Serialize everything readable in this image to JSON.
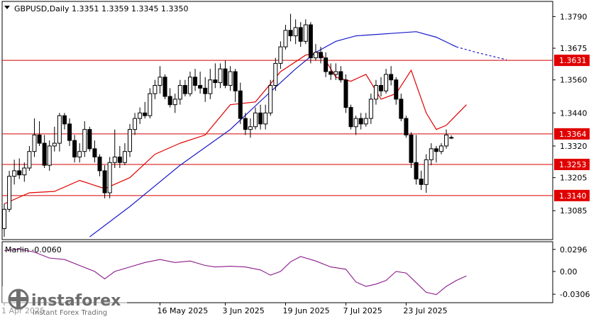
{
  "header": {
    "symbol_line": "GBPUSD,Daily  1.3351  1.3359  1.3345  1.3350",
    "dropdown_icon": "triangle-down-icon"
  },
  "indicator": {
    "label": "Marlin -0.0060",
    "ticks": [
      "0.0296",
      "0.00",
      "-0.0306"
    ]
  },
  "watermark": {
    "brand": "instaforex",
    "tagline": "Instant Forex Trading"
  },
  "colors": {
    "background": "#ffffff",
    "candle": "#000000",
    "level_line": "#d40000",
    "level_label_bg": "#e00000",
    "ma_fast": "#e00000",
    "ma_slow": "#1a1acc",
    "oscillator": "#8b1a8b"
  },
  "chart_data": [
    {
      "type": "candlestick",
      "symbol": "GBPUSD",
      "timeframe": "Daily",
      "ohlc_current": {
        "open": 1.3351,
        "high": 1.3359,
        "low": 1.3345,
        "close": 1.335
      },
      "y_ticks": [
        "1.3790",
        "1.3675",
        "1.3560",
        "1.3440",
        "1.3320",
        "1.3205",
        "1.3085"
      ],
      "ylim": [
        1.298,
        1.3845
      ],
      "x_ticks": [
        "1 Apr 2025",
        "16 May 2025",
        "3 Jun 2025",
        "19 Jun 2025",
        "7 Jul 2025",
        "23 Jul 2025"
      ],
      "x_tick_index": [
        0,
        31,
        44,
        56,
        68,
        80
      ],
      "levels": [
        {
          "label": "1.3631",
          "value": 1.3631
        },
        {
          "label": "1.3364",
          "value": 1.3364
        },
        {
          "label": "1.3253",
          "value": 1.3253
        },
        {
          "label": "1.3140",
          "value": 1.314
        }
      ],
      "candles": [
        [
          1.302,
          1.311,
          1.299,
          1.309
        ],
        [
          1.309,
          1.323,
          1.308,
          1.321
        ],
        [
          1.321,
          1.327,
          1.318,
          1.323
        ],
        [
          1.323,
          1.3275,
          1.32,
          1.3215
        ],
        [
          1.3215,
          1.326,
          1.319,
          1.324
        ],
        [
          1.324,
          1.332,
          1.323,
          1.33
        ],
        [
          1.33,
          1.342,
          1.328,
          1.336
        ],
        [
          1.336,
          1.341,
          1.332,
          1.333
        ],
        [
          1.333,
          1.336,
          1.324,
          1.325
        ],
        [
          1.325,
          1.334,
          1.323,
          1.332
        ],
        [
          1.332,
          1.339,
          1.33,
          1.333
        ],
        [
          1.333,
          1.344,
          1.33,
          1.343
        ],
        [
          1.343,
          1.344,
          1.338,
          1.34
        ],
        [
          1.34,
          1.342,
          1.332,
          1.334
        ],
        [
          1.334,
          1.336,
          1.326,
          1.328
        ],
        [
          1.328,
          1.333,
          1.326,
          1.33
        ],
        [
          1.33,
          1.341,
          1.328,
          1.338
        ],
        [
          1.338,
          1.339,
          1.33,
          1.331
        ],
        [
          1.331,
          1.334,
          1.326,
          1.328
        ],
        [
          1.328,
          1.329,
          1.321,
          1.323
        ],
        [
          1.323,
          1.325,
          1.313,
          1.315
        ],
        [
          1.315,
          1.328,
          1.313,
          1.326
        ],
        [
          1.326,
          1.338,
          1.324,
          1.328
        ],
        [
          1.328,
          1.332,
          1.324,
          1.326
        ],
        [
          1.326,
          1.333,
          1.325,
          1.33
        ],
        [
          1.33,
          1.34,
          1.328,
          1.338
        ],
        [
          1.338,
          1.344,
          1.336,
          1.342
        ],
        [
          1.342,
          1.346,
          1.34,
          1.344
        ],
        [
          1.344,
          1.348,
          1.342,
          1.343
        ],
        [
          1.343,
          1.353,
          1.342,
          1.351
        ],
        [
          1.351,
          1.356,
          1.349,
          1.354
        ],
        [
          1.354,
          1.361,
          1.351,
          1.357
        ],
        [
          1.357,
          1.358,
          1.349,
          1.35
        ],
        [
          1.35,
          1.353,
          1.346,
          1.347
        ],
        [
          1.347,
          1.351,
          1.344,
          1.349
        ],
        [
          1.349,
          1.356,
          1.347,
          1.354
        ],
        [
          1.354,
          1.356,
          1.35,
          1.351
        ],
        [
          1.351,
          1.359,
          1.35,
          1.357
        ],
        [
          1.357,
          1.36,
          1.352,
          1.354
        ],
        [
          1.354,
          1.359,
          1.351,
          1.353
        ],
        [
          1.353,
          1.357,
          1.348,
          1.351
        ],
        [
          1.351,
          1.36,
          1.349,
          1.356
        ],
        [
          1.356,
          1.362,
          1.353,
          1.355
        ],
        [
          1.355,
          1.362,
          1.353,
          1.36
        ],
        [
          1.36,
          1.363,
          1.353,
          1.354
        ],
        [
          1.354,
          1.361,
          1.352,
          1.359
        ],
        [
          1.359,
          1.36,
          1.348,
          1.352
        ],
        [
          1.352,
          1.355,
          1.34,
          1.342
        ],
        [
          1.342,
          1.344,
          1.336,
          1.338
        ],
        [
          1.338,
          1.342,
          1.335,
          1.339
        ],
        [
          1.339,
          1.346,
          1.338,
          1.344
        ],
        [
          1.344,
          1.347,
          1.338,
          1.34
        ],
        [
          1.34,
          1.347,
          1.338,
          1.344
        ],
        [
          1.344,
          1.356,
          1.343,
          1.354
        ],
        [
          1.354,
          1.364,
          1.352,
          1.362
        ],
        [
          1.362,
          1.37,
          1.36,
          1.368
        ],
        [
          1.368,
          1.376,
          1.367,
          1.374
        ],
        [
          1.374,
          1.38,
          1.37,
          1.372
        ],
        [
          1.372,
          1.378,
          1.369,
          1.375
        ],
        [
          1.375,
          1.377,
          1.368,
          1.37
        ],
        [
          1.37,
          1.378,
          1.369,
          1.376
        ],
        [
          1.376,
          1.377,
          1.362,
          1.364
        ],
        [
          1.364,
          1.369,
          1.363,
          1.366
        ],
        [
          1.366,
          1.368,
          1.362,
          1.364
        ],
        [
          1.364,
          1.366,
          1.357,
          1.359
        ],
        [
          1.359,
          1.362,
          1.356,
          1.358
        ],
        [
          1.358,
          1.362,
          1.356,
          1.359
        ],
        [
          1.359,
          1.361,
          1.355,
          1.356
        ],
        [
          1.356,
          1.358,
          1.344,
          1.346
        ],
        [
          1.346,
          1.347,
          1.338,
          1.339
        ],
        [
          1.339,
          1.343,
          1.336,
          1.342
        ],
        [
          1.342,
          1.344,
          1.338,
          1.34
        ],
        [
          1.34,
          1.344,
          1.339,
          1.342
        ],
        [
          1.342,
          1.351,
          1.34,
          1.349
        ],
        [
          1.349,
          1.356,
          1.347,
          1.354
        ],
        [
          1.354,
          1.357,
          1.35,
          1.352
        ],
        [
          1.352,
          1.36,
          1.351,
          1.358
        ],
        [
          1.358,
          1.361,
          1.354,
          1.356
        ],
        [
          1.356,
          1.357,
          1.347,
          1.349
        ],
        [
          1.349,
          1.351,
          1.341,
          1.342
        ],
        [
          1.342,
          1.343,
          1.335,
          1.336
        ],
        [
          1.336,
          1.337,
          1.324,
          1.326
        ],
        [
          1.326,
          1.336,
          1.318,
          1.32
        ],
        [
          1.32,
          1.323,
          1.316,
          1.318
        ],
        [
          1.318,
          1.329,
          1.315,
          1.327
        ],
        [
          1.327,
          1.333,
          1.325,
          1.331
        ],
        [
          1.331,
          1.332,
          1.326,
          1.33
        ],
        [
          1.33,
          1.333,
          1.329,
          1.332
        ],
        [
          1.332,
          1.338,
          1.331,
          1.336
        ],
        [
          1.3351,
          1.3359,
          1.3345,
          1.335
        ]
      ],
      "ma_fast": [
        [
          0,
          1.311
        ],
        [
          5,
          1.315
        ],
        [
          10,
          1.3155
        ],
        [
          15,
          1.3195
        ],
        [
          20,
          1.3165
        ],
        [
          25,
          1.3205
        ],
        [
          30,
          1.329
        ],
        [
          35,
          1.333
        ],
        [
          40,
          1.336
        ],
        [
          45,
          1.347
        ],
        [
          50,
          1.348
        ],
        [
          55,
          1.359
        ],
        [
          60,
          1.365
        ],
        [
          63,
          1.366
        ],
        [
          66,
          1.357
        ],
        [
          69,
          1.3555
        ],
        [
          72,
          1.358
        ],
        [
          75,
          1.349
        ],
        [
          78,
          1.351
        ],
        [
          81,
          1.3595
        ],
        [
          84,
          1.344
        ],
        [
          86,
          1.338
        ],
        [
          88,
          1.3395
        ],
        [
          92,
          1.347
        ]
      ],
      "ma_slow": [
        [
          17,
          1.299
        ],
        [
          25,
          1.31
        ],
        [
          35,
          1.325
        ],
        [
          45,
          1.338
        ],
        [
          52,
          1.35
        ],
        [
          58,
          1.36
        ],
        [
          62,
          1.366
        ],
        [
          66,
          1.37
        ],
        [
          70,
          1.372
        ],
        [
          74,
          1.3725
        ],
        [
          78,
          1.373
        ],
        [
          82,
          1.3735
        ],
        [
          86,
          1.3715
        ],
        [
          90,
          1.368
        ]
      ],
      "ma_slow_projection": [
        [
          90,
          1.368
        ],
        [
          94,
          1.366
        ],
        [
          100,
          1.3633
        ]
      ]
    },
    {
      "type": "line",
      "name": "Marlin",
      "ylim": [
        -0.04,
        0.038
      ],
      "values": [
        [
          0,
          0.028
        ],
        [
          3,
          0.03
        ],
        [
          6,
          0.026
        ],
        [
          9,
          0.018
        ],
        [
          12,
          0.016
        ],
        [
          15,
          0.008
        ],
        [
          18,
          0.0
        ],
        [
          20,
          -0.01
        ],
        [
          22,
          0.0
        ],
        [
          25,
          0.006
        ],
        [
          28,
          0.012
        ],
        [
          31,
          0.016
        ],
        [
          34,
          0.012
        ],
        [
          37,
          0.014
        ],
        [
          40,
          0.008
        ],
        [
          42,
          0.006
        ],
        [
          45,
          0.007
        ],
        [
          48,
          0.006
        ],
        [
          51,
          0.002
        ],
        [
          53,
          -0.005
        ],
        [
          55,
          0.0
        ],
        [
          57,
          0.013
        ],
        [
          59,
          0.02
        ],
        [
          62,
          0.014
        ],
        [
          65,
          0.006
        ],
        [
          68,
          0.003
        ],
        [
          70,
          -0.014
        ],
        [
          72,
          -0.02
        ],
        [
          74,
          -0.017
        ],
        [
          76,
          -0.012
        ],
        [
          78,
          0.0
        ],
        [
          80,
          -0.002
        ],
        [
          82,
          -0.015
        ],
        [
          84,
          -0.028
        ],
        [
          86,
          -0.031
        ],
        [
          88,
          -0.02
        ],
        [
          90,
          -0.012
        ],
        [
          92,
          -0.006
        ]
      ]
    }
  ]
}
